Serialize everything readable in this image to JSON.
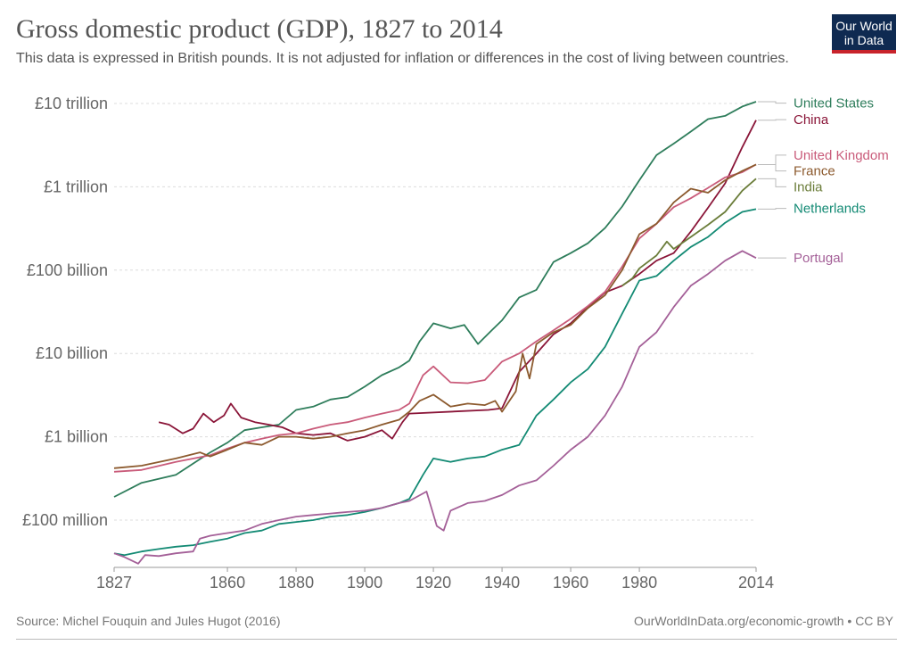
{
  "header": {
    "title": "Gross domestic product (GDP), 1827 to 2014",
    "subtitle": "This data is expressed in British pounds. It is not adjusted for inflation or differences in the cost of living between countries."
  },
  "logo": {
    "line1": "Our World",
    "line2": "in Data",
    "bg": "#0f2a51",
    "accent": "#c8232b"
  },
  "footer": {
    "source": "Source: Michel Fouquin and Jules Hugot (2016)",
    "license": "OurWorldInData.org/economic-growth • CC BY"
  },
  "chart_data": {
    "type": "line",
    "title": "Gross domestic product (GDP), 1827 to 2014",
    "xlabel": "",
    "ylabel": "",
    "xlim": [
      1827,
      2014
    ],
    "ylim": [
      30000000.0,
      12000000000000.0
    ],
    "yscale": "log",
    "grid": true,
    "legend": "right, labels at line ends",
    "x_ticks": [
      {
        "value": 1827,
        "label": "1827"
      },
      {
        "value": 1860,
        "label": "1860"
      },
      {
        "value": 1880,
        "label": "1880"
      },
      {
        "value": 1900,
        "label": "1900"
      },
      {
        "value": 1920,
        "label": "1920"
      },
      {
        "value": 1940,
        "label": "1940"
      },
      {
        "value": 1960,
        "label": "1960"
      },
      {
        "value": 1980,
        "label": "1980"
      },
      {
        "value": 2014,
        "label": "2014"
      }
    ],
    "y_ticks": [
      {
        "value": 10000000000000.0,
        "label": "£10 trillion"
      },
      {
        "value": 1000000000000.0,
        "label": "£1 trillion"
      },
      {
        "value": 100000000000.0,
        "label": "£100 billion"
      },
      {
        "value": 10000000000.0,
        "label": "£10 billion"
      },
      {
        "value": 1000000000.0,
        "label": "£1 billion"
      },
      {
        "value": 100000000.0,
        "label": "£100 million"
      }
    ],
    "series": [
      {
        "name": "United States",
        "color": "#2e7d5b",
        "label_y": 10100000000000.0,
        "points": [
          [
            1827,
            190000000.0
          ],
          [
            1835,
            280000000.0
          ],
          [
            1845,
            350000000.0
          ],
          [
            1855,
            650000000.0
          ],
          [
            1860,
            850000000.0
          ],
          [
            1865,
            1200000000.0
          ],
          [
            1870,
            1300000000.0
          ],
          [
            1875,
            1400000000.0
          ],
          [
            1880,
            2100000000.0
          ],
          [
            1885,
            2300000000.0
          ],
          [
            1890,
            2800000000.0
          ],
          [
            1895,
            3000000000.0
          ],
          [
            1900,
            4000000000.0
          ],
          [
            1905,
            5500000000.0
          ],
          [
            1910,
            6800000000.0
          ],
          [
            1913,
            8200000000.0
          ],
          [
            1916,
            14000000000.0
          ],
          [
            1920,
            23000000000.0
          ],
          [
            1925,
            20000000000.0
          ],
          [
            1929,
            22000000000.0
          ],
          [
            1933,
            13000000000.0
          ],
          [
            1937,
            19000000000.0
          ],
          [
            1940,
            25000000000.0
          ],
          [
            1945,
            47000000000.0
          ],
          [
            1950,
            58000000000.0
          ],
          [
            1955,
            125000000000.0
          ],
          [
            1960,
            160000000000.0
          ],
          [
            1965,
            210000000000.0
          ],
          [
            1970,
            320000000000.0
          ],
          [
            1975,
            580000000000.0
          ],
          [
            1980,
            1200000000000.0
          ],
          [
            1985,
            2400000000000.0
          ],
          [
            1990,
            3300000000000.0
          ],
          [
            1995,
            4600000000000.0
          ],
          [
            2000,
            6500000000000.0
          ],
          [
            2005,
            7100000000000.0
          ],
          [
            2010,
            9200000000000.0
          ],
          [
            2014,
            10500000000000.0
          ]
        ]
      },
      {
        "name": "China",
        "color": "#8a1538",
        "label_y": 6400000000000.0,
        "points": [
          [
            1840,
            1500000000.0
          ],
          [
            1843,
            1400000000.0
          ],
          [
            1847,
            1100000000.0
          ],
          [
            1850,
            1250000000.0
          ],
          [
            1853,
            1900000000.0
          ],
          [
            1856,
            1500000000.0
          ],
          [
            1859,
            1800000000.0
          ],
          [
            1861,
            2500000000.0
          ],
          [
            1864,
            1700000000.0
          ],
          [
            1868,
            1500000000.0
          ],
          [
            1872,
            1400000000.0
          ],
          [
            1876,
            1300000000.0
          ],
          [
            1880,
            1100000000.0
          ],
          [
            1885,
            1050000000.0
          ],
          [
            1890,
            1100000000.0
          ],
          [
            1895,
            900000000.0
          ],
          [
            1900,
            1000000000.0
          ],
          [
            1905,
            1200000000.0
          ],
          [
            1908,
            950000000.0
          ],
          [
            1911,
            1500000000.0
          ],
          [
            1913,
            1900000000.0
          ],
          [
            1936,
            2100000000.0
          ],
          [
            1940,
            2200000000.0
          ],
          [
            1945,
            6000000000.0
          ],
          [
            1950,
            10000000000.0
          ],
          [
            1955,
            17000000000.0
          ],
          [
            1960,
            23000000000.0
          ],
          [
            1965,
            36000000000.0
          ],
          [
            1970,
            54000000000.0
          ],
          [
            1975,
            65000000000.0
          ],
          [
            1980,
            90000000000.0
          ],
          [
            1985,
            130000000000.0
          ],
          [
            1990,
            160000000000.0
          ],
          [
            1995,
            290000000000.0
          ],
          [
            2000,
            560000000000.0
          ],
          [
            2005,
            1100000000000.0
          ],
          [
            2010,
            3000000000000.0
          ],
          [
            2014,
            6300000000000.0
          ]
        ]
      },
      {
        "name": "United Kingdom",
        "color": "#c95b7a",
        "label_y": 2400000000000.0,
        "points": [
          [
            1827,
            380000000.0
          ],
          [
            1835,
            400000000.0
          ],
          [
            1845,
            500000000.0
          ],
          [
            1855,
            600000000.0
          ],
          [
            1860,
            720000000.0
          ],
          [
            1865,
            850000000.0
          ],
          [
            1870,
            950000000.0
          ],
          [
            1875,
            1050000000.0
          ],
          [
            1880,
            1100000000.0
          ],
          [
            1885,
            1250000000.0
          ],
          [
            1890,
            1400000000.0
          ],
          [
            1895,
            1500000000.0
          ],
          [
            1900,
            1700000000.0
          ],
          [
            1905,
            1900000000.0
          ],
          [
            1910,
            2100000000.0
          ],
          [
            1913,
            2500000000.0
          ],
          [
            1917,
            5500000000.0
          ],
          [
            1920,
            7000000000.0
          ],
          [
            1925,
            4500000000.0
          ],
          [
            1930,
            4400000000.0
          ],
          [
            1935,
            4800000000.0
          ],
          [
            1940,
            8000000000.0
          ],
          [
            1945,
            10000000000.0
          ],
          [
            1950,
            14000000000.0
          ],
          [
            1955,
            19000000000.0
          ],
          [
            1960,
            26000000000.0
          ],
          [
            1965,
            37000000000.0
          ],
          [
            1970,
            55000000000.0
          ],
          [
            1975,
            110000000000.0
          ],
          [
            1980,
            240000000000.0
          ],
          [
            1985,
            360000000000.0
          ],
          [
            1990,
            570000000000.0
          ],
          [
            1995,
            730000000000.0
          ],
          [
            2000,
            970000000000.0
          ],
          [
            2005,
            1300000000000.0
          ],
          [
            2010,
            1500000000000.0
          ],
          [
            2014,
            1850000000000.0
          ]
        ]
      },
      {
        "name": "France",
        "color": "#8c5a2e",
        "label_y": 1550000000000.0,
        "points": [
          [
            1827,
            420000000.0
          ],
          [
            1835,
            450000000.0
          ],
          [
            1845,
            550000000.0
          ],
          [
            1852,
            650000000.0
          ],
          [
            1855,
            580000000.0
          ],
          [
            1860,
            700000000.0
          ],
          [
            1865,
            850000000.0
          ],
          [
            1870,
            800000000.0
          ],
          [
            1875,
            1000000000.0
          ],
          [
            1880,
            1000000000.0
          ],
          [
            1885,
            950000000.0
          ],
          [
            1890,
            1000000000.0
          ],
          [
            1895,
            1100000000.0
          ],
          [
            1900,
            1200000000.0
          ],
          [
            1905,
            1400000000.0
          ],
          [
            1910,
            1600000000.0
          ],
          [
            1913,
            2000000000.0
          ],
          [
            1916,
            2700000000.0
          ],
          [
            1920,
            3200000000.0
          ],
          [
            1925,
            2300000000.0
          ],
          [
            1930,
            2500000000.0
          ],
          [
            1935,
            2400000000.0
          ],
          [
            1938,
            2700000000.0
          ],
          [
            1940,
            2000000000.0
          ],
          [
            1944,
            3500000000.0
          ],
          [
            1946,
            10000000000.0
          ],
          [
            1948,
            5000000000.0
          ],
          [
            1950,
            13000000000.0
          ],
          [
            1955,
            18000000000.0
          ],
          [
            1960,
            22000000000.0
          ],
          [
            1965,
            35000000000.0
          ],
          [
            1970,
            50000000000.0
          ],
          [
            1975,
            100000000000.0
          ],
          [
            1980,
            270000000000.0
          ],
          [
            1985,
            360000000000.0
          ],
          [
            1990,
            650000000000.0
          ],
          [
            1995,
            950000000000.0
          ],
          [
            2000,
            850000000000.0
          ],
          [
            2005,
            1200000000000.0
          ],
          [
            2010,
            1550000000000.0
          ],
          [
            2014,
            1850000000000.0
          ]
        ]
      },
      {
        "name": "India",
        "color": "#6b7d3a",
        "label_y": 1000000000000.0,
        "points": [
          [
            1975,
            65000000000.0
          ],
          [
            1978,
            80000000000.0
          ],
          [
            1980,
            105000000000.0
          ],
          [
            1985,
            150000000000.0
          ],
          [
            1988,
            220000000000.0
          ],
          [
            1990,
            180000000000.0
          ],
          [
            1995,
            250000000000.0
          ],
          [
            2000,
            350000000000.0
          ],
          [
            2005,
            500000000000.0
          ],
          [
            2010,
            900000000000.0
          ],
          [
            2014,
            1250000000000.0
          ]
        ]
      },
      {
        "name": "Netherlands",
        "color": "#138a74",
        "label_y": 550000000000.0,
        "points": [
          [
            1827,
            40000000.0
          ],
          [
            1830,
            38000000.0
          ],
          [
            1835,
            42000000.0
          ],
          [
            1840,
            45000000.0
          ],
          [
            1845,
            48000000.0
          ],
          [
            1850,
            50000000.0
          ],
          [
            1855,
            55000000.0
          ],
          [
            1860,
            60000000.0
          ],
          [
            1865,
            70000000.0
          ],
          [
            1870,
            75000000.0
          ],
          [
            1875,
            90000000.0
          ],
          [
            1880,
            95000000.0
          ],
          [
            1885,
            100000000.0
          ],
          [
            1890,
            110000000.0
          ],
          [
            1895,
            115000000.0
          ],
          [
            1900,
            125000000.0
          ],
          [
            1905,
            140000000.0
          ],
          [
            1910,
            160000000.0
          ],
          [
            1913,
            180000000.0
          ],
          [
            1917,
            350000000.0
          ],
          [
            1920,
            550000000.0
          ],
          [
            1925,
            500000000.0
          ],
          [
            1930,
            550000000.0
          ],
          [
            1935,
            580000000.0
          ],
          [
            1940,
            700000000.0
          ],
          [
            1945,
            800000000.0
          ],
          [
            1950,
            1800000000.0
          ],
          [
            1955,
            2800000000.0
          ],
          [
            1960,
            4500000000.0
          ],
          [
            1965,
            6500000000.0
          ],
          [
            1970,
            12000000000.0
          ],
          [
            1975,
            30000000000.0
          ],
          [
            1980,
            75000000000.0
          ],
          [
            1985,
            85000000000.0
          ],
          [
            1990,
            130000000000.0
          ],
          [
            1995,
            190000000000.0
          ],
          [
            2000,
            250000000000.0
          ],
          [
            2005,
            370000000000.0
          ],
          [
            2010,
            500000000000.0
          ],
          [
            2014,
            540000000000.0
          ]
        ]
      },
      {
        "name": "Portugal",
        "color": "#a46098",
        "label_y": 140000000000.0,
        "points": [
          [
            1827,
            40000000.0
          ],
          [
            1830,
            36000000.0
          ],
          [
            1834,
            30000000.0
          ],
          [
            1836,
            38000000.0
          ],
          [
            1840,
            37000000.0
          ],
          [
            1845,
            40000000.0
          ],
          [
            1850,
            42000000.0
          ],
          [
            1852,
            60000000.0
          ],
          [
            1855,
            65000000.0
          ],
          [
            1860,
            70000000.0
          ],
          [
            1865,
            75000000.0
          ],
          [
            1870,
            90000000.0
          ],
          [
            1875,
            100000000.0
          ],
          [
            1880,
            110000000.0
          ],
          [
            1885,
            115000000.0
          ],
          [
            1890,
            120000000.0
          ],
          [
            1895,
            125000000.0
          ],
          [
            1900,
            130000000.0
          ],
          [
            1905,
            140000000.0
          ],
          [
            1910,
            160000000.0
          ],
          [
            1913,
            170000000.0
          ],
          [
            1918,
            220000000.0
          ],
          [
            1921,
            85000000.0
          ],
          [
            1923,
            75000000.0
          ],
          [
            1925,
            130000000.0
          ],
          [
            1930,
            160000000.0
          ],
          [
            1935,
            170000000.0
          ],
          [
            1940,
            200000000.0
          ],
          [
            1945,
            260000000.0
          ],
          [
            1950,
            300000000.0
          ],
          [
            1955,
            450000000.0
          ],
          [
            1960,
            700000000.0
          ],
          [
            1965,
            1000000000.0
          ],
          [
            1970,
            1800000000.0
          ],
          [
            1975,
            4000000000.0
          ],
          [
            1980,
            12000000000.0
          ],
          [
            1985,
            18000000000.0
          ],
          [
            1990,
            36000000000.0
          ],
          [
            1995,
            65000000000.0
          ],
          [
            2000,
            90000000000.0
          ],
          [
            2005,
            130000000000.0
          ],
          [
            2010,
            170000000000.0
          ],
          [
            2014,
            140000000000.0
          ]
        ]
      }
    ]
  }
}
